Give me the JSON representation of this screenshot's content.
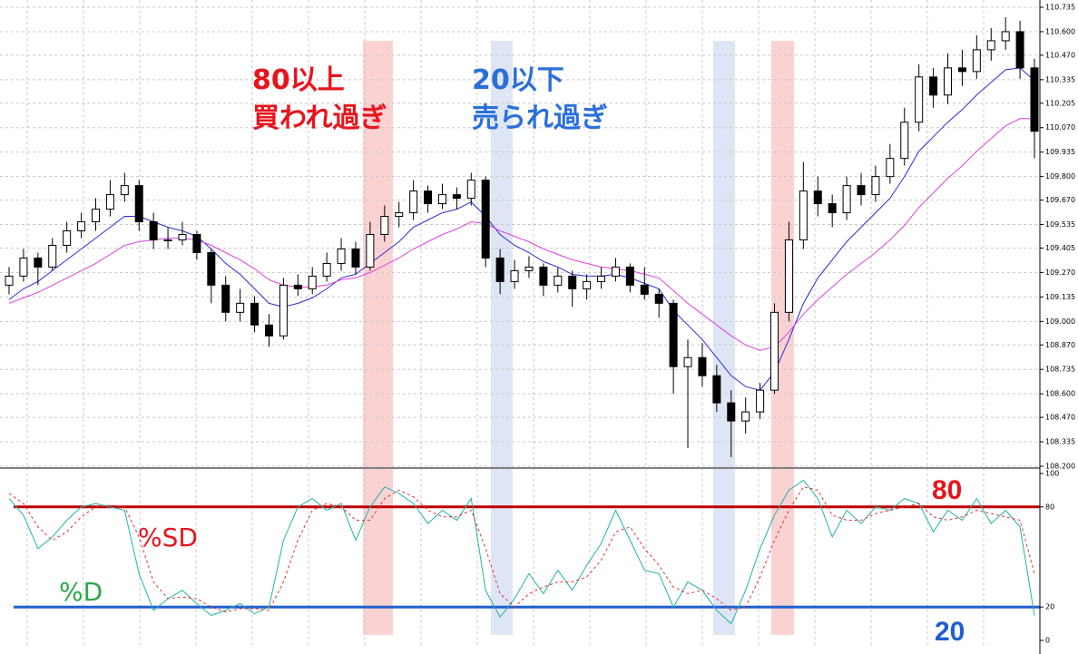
{
  "chart_data": [
    {
      "type": "candlestick",
      "ylim": [
        108.2,
        110.735
      ],
      "yticks": [
        110.735,
        {
          "value": 110.6,
          "label": "110.600"
        },
        {
          "value": 110.47,
          "label": "110.470"
        },
        110.335,
        110.205,
        {
          "value": 110.07,
          "label": "110.070"
        },
        109.935,
        {
          "value": 109.8,
          "label": "109.800"
        },
        {
          "value": 109.67,
          "label": "109.670"
        },
        109.535,
        109.405,
        {
          "value": 109.27,
          "label": "109.270"
        },
        109.135,
        {
          "value": 109,
          "label": "109.000"
        },
        {
          "value": 108.87,
          "label": "108.870"
        },
        108.735,
        {
          "value": 108.6,
          "label": "108.600"
        },
        {
          "value": 108.47,
          "label": "108.470"
        },
        108.335,
        {
          "value": 108.2,
          "label": "108.200"
        }
      ],
      "grid": true,
      "annotations": [
        {
          "lines": [
            "80以上",
            "買われ過ぎ"
          ],
          "color": "#e8141c"
        },
        {
          "lines": [
            "20以下",
            "売られ過ぎ"
          ],
          "color": "#2a6fdb"
        }
      ],
      "ohlc": [
        [
          109.2,
          109.3,
          109.15,
          109.25
        ],
        [
          109.25,
          109.4,
          109.22,
          109.35
        ],
        [
          109.35,
          109.38,
          109.2,
          109.3
        ],
        [
          109.3,
          109.46,
          109.28,
          109.42
        ],
        [
          109.42,
          109.55,
          109.38,
          109.5
        ],
        [
          109.5,
          109.6,
          109.46,
          109.55
        ],
        [
          109.55,
          109.68,
          109.5,
          109.62
        ],
        [
          109.62,
          109.78,
          109.58,
          109.7
        ],
        [
          109.7,
          109.82,
          109.66,
          109.75
        ],
        [
          109.75,
          109.78,
          109.5,
          109.55
        ],
        [
          109.55,
          109.6,
          109.4,
          109.45
        ],
        [
          109.45,
          109.52,
          109.4,
          109.45
        ],
        [
          109.45,
          109.55,
          109.42,
          109.48
        ],
        [
          109.48,
          109.5,
          109.34,
          109.38
        ],
        [
          109.38,
          109.4,
          109.1,
          109.2
        ],
        [
          109.2,
          109.25,
          109.0,
          109.05
        ],
        [
          109.05,
          109.18,
          109.0,
          109.1
        ],
        [
          109.1,
          109.14,
          108.94,
          108.98
        ],
        [
          108.98,
          109.04,
          108.86,
          108.92
        ],
        [
          108.92,
          109.24,
          108.9,
          109.2
        ],
        [
          109.2,
          109.26,
          109.14,
          109.18
        ],
        [
          109.18,
          109.3,
          109.15,
          109.25
        ],
        [
          109.25,
          109.38,
          109.22,
          109.32
        ],
        [
          109.32,
          109.46,
          109.28,
          109.4
        ],
        [
          109.4,
          109.44,
          109.26,
          109.3
        ],
        [
          109.3,
          109.55,
          109.28,
          109.48
        ],
        [
          109.48,
          109.64,
          109.44,
          109.58
        ],
        [
          109.58,
          109.66,
          109.52,
          109.6
        ],
        [
          109.6,
          109.78,
          109.56,
          109.72
        ],
        [
          109.72,
          109.75,
          109.6,
          109.65
        ],
        [
          109.65,
          109.76,
          109.62,
          109.7
        ],
        [
          109.7,
          109.74,
          109.62,
          109.68
        ],
        [
          109.68,
          109.82,
          109.64,
          109.78
        ],
        [
          109.78,
          109.8,
          109.3,
          109.35
        ],
        [
          109.35,
          109.4,
          109.15,
          109.22
        ],
        [
          109.22,
          109.34,
          109.18,
          109.28
        ],
        [
          109.28,
          109.36,
          109.24,
          109.3
        ],
        [
          109.3,
          109.32,
          109.14,
          109.2
        ],
        [
          109.2,
          109.3,
          109.16,
          109.25
        ],
        [
          109.25,
          109.28,
          109.08,
          109.18
        ],
        [
          109.18,
          109.26,
          109.12,
          109.22
        ],
        [
          109.22,
          109.3,
          109.18,
          109.25
        ],
        [
          109.25,
          109.35,
          109.22,
          109.3
        ],
        [
          109.3,
          109.32,
          109.16,
          109.2
        ],
        [
          109.2,
          109.3,
          109.12,
          109.15
        ],
        [
          109.15,
          109.18,
          109.02,
          109.1
        ],
        [
          109.1,
          109.12,
          108.6,
          108.75
        ],
        [
          108.75,
          108.9,
          108.3,
          108.8
        ],
        [
          108.8,
          108.88,
          108.64,
          108.7
        ],
        [
          108.7,
          108.76,
          108.5,
          108.55
        ],
        [
          108.55,
          108.62,
          108.25,
          108.45
        ],
        [
          108.45,
          108.58,
          108.38,
          108.5
        ],
        [
          108.5,
          108.66,
          108.46,
          108.62
        ],
        [
          108.62,
          109.1,
          108.6,
          109.05
        ],
        [
          109.05,
          109.55,
          109.0,
          109.45
        ],
        [
          109.45,
          109.88,
          109.4,
          109.72
        ],
        [
          109.72,
          109.8,
          109.58,
          109.65
        ],
        [
          109.65,
          109.7,
          109.52,
          109.6
        ],
        [
          109.6,
          109.8,
          109.56,
          109.75
        ],
        [
          109.75,
          109.82,
          109.64,
          109.7
        ],
        [
          109.7,
          109.86,
          109.66,
          109.8
        ],
        [
          109.8,
          109.98,
          109.76,
          109.9
        ],
        [
          109.9,
          110.18,
          109.86,
          110.1
        ],
        [
          110.1,
          110.42,
          110.05,
          110.35
        ],
        [
          110.35,
          110.4,
          110.18,
          110.25
        ],
        [
          110.25,
          110.48,
          110.2,
          110.4
        ],
        [
          110.4,
          110.5,
          110.3,
          110.38
        ],
        [
          110.38,
          110.58,
          110.34,
          110.5
        ],
        [
          110.5,
          110.62,
          110.44,
          110.55
        ],
        [
          110.55,
          110.68,
          110.5,
          110.6
        ],
        [
          110.6,
          110.66,
          110.34,
          110.4
        ],
        [
          110.4,
          110.45,
          109.9,
          110.05
        ]
      ],
      "overlays": [
        {
          "color": "#2b2bd8",
          "values": [
            109.12,
            109.18,
            109.22,
            109.28,
            109.34,
            109.4,
            109.46,
            109.52,
            109.58,
            109.58,
            109.55,
            109.52,
            109.5,
            109.47,
            109.4,
            109.32,
            109.26,
            109.18,
            109.1,
            109.08,
            109.1,
            109.13,
            109.18,
            109.24,
            109.26,
            109.32,
            109.38,
            109.44,
            109.52,
            109.56,
            109.6,
            109.62,
            109.66,
            109.58,
            109.48,
            109.42,
            109.38,
            109.33,
            109.3,
            109.26,
            109.25,
            109.25,
            109.26,
            109.24,
            109.21,
            109.18,
            109.06,
            108.98,
            108.9,
            108.8,
            108.7,
            108.64,
            108.62,
            108.72,
            108.9,
            109.1,
            109.24,
            109.34,
            109.44,
            109.52,
            109.6,
            109.68,
            109.8,
            109.94,
            110.02,
            110.1,
            110.17,
            110.25,
            110.32,
            110.39,
            110.4,
            110.33
          ]
        },
        {
          "color": "#e040e0",
          "values": [
            109.1,
            109.13,
            109.16,
            109.2,
            109.24,
            109.28,
            109.32,
            109.37,
            109.42,
            109.44,
            109.45,
            109.46,
            109.46,
            109.45,
            109.42,
            109.38,
            109.34,
            109.29,
            109.23,
            109.2,
            109.19,
            109.19,
            109.2,
            109.23,
            109.24,
            109.27,
            109.31,
            109.35,
            109.4,
            109.44,
            109.48,
            109.51,
            109.55,
            109.54,
            109.5,
            109.47,
            109.44,
            109.4,
            109.37,
            109.34,
            109.32,
            109.3,
            109.29,
            109.28,
            109.26,
            109.24,
            109.17,
            109.1,
            109.04,
            108.98,
            108.92,
            108.87,
            108.84,
            108.86,
            108.94,
            109.04,
            109.12,
            109.19,
            109.26,
            109.32,
            109.38,
            109.45,
            109.53,
            109.63,
            109.71,
            109.79,
            109.86,
            109.94,
            110.01,
            110.08,
            110.12,
            110.12
          ]
        }
      ]
    },
    {
      "type": "line",
      "ylim": [
        0,
        100
      ],
      "yticks": [
        0,
        20,
        80,
        100
      ],
      "levels": [
        {
          "value": 80,
          "color": "#c00000"
        },
        {
          "value": 20,
          "color": "#1f5fd0"
        }
      ],
      "series": [
        {
          "name": "%D",
          "color": "#20b2aa",
          "dashed": false,
          "values": [
            85,
            75,
            55,
            62,
            72,
            80,
            82,
            80,
            78,
            40,
            18,
            25,
            30,
            22,
            15,
            18,
            22,
            16,
            20,
            60,
            80,
            85,
            78,
            82,
            60,
            80,
            92,
            88,
            82,
            70,
            78,
            72,
            85,
            30,
            14,
            25,
            40,
            28,
            42,
            30,
            45,
            58,
            78,
            60,
            42,
            40,
            20,
            35,
            30,
            18,
            10,
            30,
            55,
            75,
            90,
            96,
            85,
            62,
            78,
            70,
            80,
            78,
            85,
            82,
            65,
            78,
            72,
            85,
            70,
            78,
            68,
            15
          ]
        },
        {
          "name": "%SD",
          "color": "#e03030",
          "dashed": true,
          "values": [
            88,
            82,
            68,
            60,
            65,
            74,
            80,
            81,
            80,
            62,
            35,
            25,
            26,
            25,
            20,
            17,
            19,
            19,
            18,
            35,
            60,
            78,
            82,
            80,
            72,
            72,
            85,
            90,
            86,
            78,
            74,
            74,
            78,
            55,
            28,
            20,
            28,
            32,
            35,
            35,
            38,
            48,
            65,
            68,
            55,
            45,
            32,
            28,
            30,
            25,
            18,
            20,
            38,
            60,
            78,
            92,
            90,
            75,
            72,
            72,
            76,
            78,
            80,
            82,
            74,
            72,
            74,
            78,
            76,
            74,
            72,
            40
          ]
        }
      ]
    }
  ]
}
